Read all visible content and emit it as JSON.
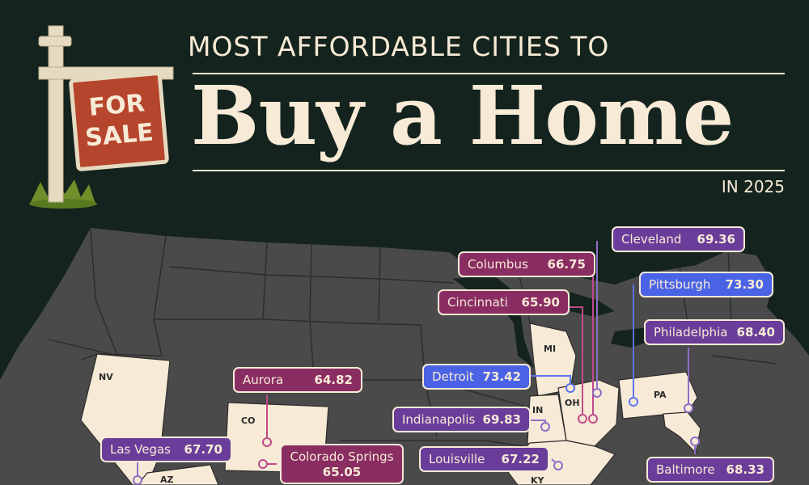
{
  "title": {
    "kicker": "MOST AFFORDABLE CITIES TO",
    "main": "Buy a Home",
    "year": "IN 2025"
  },
  "sign": {
    "line1": "FOR",
    "line2": "SALE"
  },
  "states": {
    "nv": "NV",
    "co": "CO",
    "az": "AZ",
    "mi": "MI",
    "in": "IN",
    "oh": "OH",
    "pa": "PA",
    "ky": "KY"
  },
  "cities": {
    "cleveland": {
      "name": "Cleveland",
      "score": "69.36"
    },
    "columbus": {
      "name": "Columbus",
      "score": "66.75"
    },
    "pittsburgh": {
      "name": "Pittsburgh",
      "score": "73.30"
    },
    "cincinnati": {
      "name": "Cincinnati",
      "score": "65.90"
    },
    "philadelphia": {
      "name": "Philadelphia",
      "score": "68.40"
    },
    "detroit": {
      "name": "Detroit",
      "score": "73.42"
    },
    "aurora": {
      "name": "Aurora",
      "score": "64.82"
    },
    "indianapolis": {
      "name": "Indianapolis",
      "score": "69.83"
    },
    "las_vegas": {
      "name": "Las Vegas",
      "score": "67.70"
    },
    "colorado_springs": {
      "name": "Colorado Springs",
      "score": "65.05"
    },
    "louisville": {
      "name": "Louisville",
      "score": "67.22"
    },
    "baltimore": {
      "name": "Baltimore",
      "score": "68.33"
    }
  },
  "colors": {
    "background": "#14231d",
    "cream": "#f7ead6",
    "map_gray": "#4a4a4a",
    "plum": "#8a2d63",
    "purple": "#6a3d9a",
    "blue": "#4a63e6",
    "sign_red": "#b5452c"
  }
}
